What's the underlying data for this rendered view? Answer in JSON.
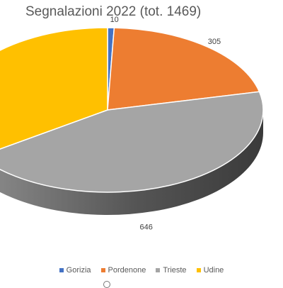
{
  "chart_data": {
    "type": "pie",
    "title": "Segnalazioni 2022 (tot. 1469)",
    "categories": [
      "Gorizia",
      "Pordenone",
      "Trieste",
      "Udine"
    ],
    "values": [
      10,
      305,
      646,
      508
    ],
    "data_labels": [
      "10",
      "305",
      "646",
      ""
    ],
    "colors": [
      "#4472C4",
      "#ED7D31",
      "#A5A5A5",
      "#FFC000"
    ],
    "legend_position": "bottom"
  }
}
